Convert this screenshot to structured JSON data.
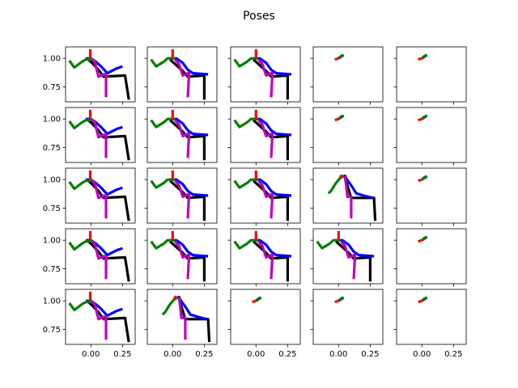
{
  "chart_data": {
    "type": "line",
    "title": "Poses",
    "rows": 5,
    "cols": 5,
    "sharex": true,
    "sharey": true,
    "xlim": [
      -0.2,
      0.35
    ],
    "ylim": [
      0.62,
      1.1
    ],
    "xticks": [
      0.0,
      0.25
    ],
    "xtick_labels": [
      "0.00",
      "0.25"
    ],
    "yticks": [
      1.0,
      0.75
    ],
    "ytick_labels": [
      "1.00",
      "0.75"
    ],
    "colors": {
      "black": "#000000",
      "blue": "#0000ff",
      "magenta": "#bf00bf",
      "green": "#008000",
      "red": "#ff0000"
    },
    "templates": {
      "full_wide": {
        "black": [
          [
            -0.03,
            1.0
          ],
          [
            0.01,
            0.96
          ],
          [
            0.06,
            0.9
          ],
          [
            0.1,
            0.84
          ],
          [
            0.27,
            0.85
          ],
          [
            0.3,
            0.64
          ]
        ],
        "blue": [
          [
            -0.04,
            1.0
          ],
          [
            0.0,
            1.0
          ],
          [
            0.04,
            0.97
          ],
          [
            0.08,
            0.93
          ],
          [
            0.13,
            0.87
          ],
          [
            0.2,
            0.91
          ],
          [
            0.25,
            0.93
          ]
        ],
        "magenta": [
          [
            0.0,
            1.0
          ],
          [
            0.03,
            0.97
          ],
          [
            0.06,
            0.84
          ],
          [
            0.1,
            0.86
          ],
          [
            0.12,
            0.86
          ],
          [
            0.12,
            0.66
          ]
        ],
        "green": [
          [
            -0.17,
            0.98
          ],
          [
            -0.13,
            0.92
          ],
          [
            -0.07,
            0.97
          ],
          [
            -0.04,
            0.99
          ],
          [
            -0.01,
            0.99
          ],
          [
            0.01,
            0.99
          ]
        ],
        "red": [
          [
            -0.005,
            1.0
          ],
          [
            -0.005,
            1.08
          ]
        ]
      },
      "full_mid": {
        "black": [
          [
            -0.02,
            0.99
          ],
          [
            0.02,
            0.95
          ],
          [
            0.08,
            0.89
          ],
          [
            0.12,
            0.84
          ],
          [
            0.25,
            0.85
          ],
          [
            0.25,
            0.64
          ]
        ],
        "blue": [
          [
            -0.02,
            1.0
          ],
          [
            0.03,
            1.0
          ],
          [
            0.08,
            0.96
          ],
          [
            0.12,
            0.9
          ],
          [
            0.16,
            0.87
          ],
          [
            0.28,
            0.86
          ]
        ],
        "magenta": [
          [
            0.02,
            0.99
          ],
          [
            0.05,
            0.95
          ],
          [
            0.08,
            0.85
          ],
          [
            0.12,
            0.87
          ],
          [
            0.13,
            0.87
          ],
          [
            0.12,
            0.66
          ]
        ],
        "green": [
          [
            -0.17,
            0.99
          ],
          [
            -0.13,
            0.93
          ],
          [
            -0.07,
            0.97
          ],
          [
            -0.04,
            1.0
          ],
          [
            0.0,
            1.0
          ],
          [
            0.02,
            1.0
          ]
        ],
        "red": [
          [
            0.0,
            1.0
          ],
          [
            0.0,
            1.08
          ]
        ]
      },
      "full_lean": {
        "black": [
          [
            0.05,
            1.04
          ],
          [
            0.07,
            0.95
          ],
          [
            0.1,
            0.84
          ],
          [
            0.28,
            0.84
          ],
          [
            0.29,
            0.64
          ]
        ],
        "blue": [
          [
            0.04,
            1.04
          ],
          [
            0.1,
            0.95
          ],
          [
            0.14,
            0.88
          ],
          [
            0.2,
            0.86
          ],
          [
            0.27,
            0.84
          ]
        ],
        "magenta": [
          [
            0.05,
            1.03
          ],
          [
            0.06,
            0.95
          ],
          [
            0.07,
            0.85
          ],
          [
            0.1,
            0.85
          ],
          [
            0.1,
            0.66
          ]
        ],
        "green": [
          [
            -0.08,
            0.88
          ],
          [
            -0.06,
            0.9
          ],
          [
            -0.02,
            0.97
          ],
          [
            0.01,
            1.01
          ],
          [
            0.04,
            1.03
          ]
        ],
        "red": [
          [
            0.01,
            1.02
          ],
          [
            0.03,
            1.04
          ]
        ]
      },
      "collapsed": {
        "black": [
          [
            0.0,
            1.0
          ],
          [
            0.04,
            1.03
          ]
        ],
        "blue": [
          [
            0.0,
            1.0
          ],
          [
            0.04,
            1.03
          ]
        ],
        "magenta": [
          [
            0.0,
            1.0
          ],
          [
            0.03,
            1.02
          ]
        ],
        "green": [
          [
            0.0,
            1.0
          ],
          [
            0.02,
            1.02
          ],
          [
            0.04,
            1.03
          ]
        ],
        "red": [
          [
            -0.03,
            0.99
          ],
          [
            0.0,
            1.0
          ]
        ]
      }
    },
    "panels": [
      "full_wide",
      "full_mid",
      "full_mid",
      "collapsed",
      "collapsed",
      "full_wide",
      "full_mid",
      "full_mid",
      "collapsed",
      "collapsed",
      "full_wide",
      "full_mid",
      "full_mid",
      "full_lean",
      "collapsed",
      "full_wide",
      "full_mid",
      "full_mid",
      "full_mid",
      "collapsed",
      "full_wide",
      "full_lean",
      "collapsed",
      "collapsed",
      "collapsed"
    ]
  }
}
